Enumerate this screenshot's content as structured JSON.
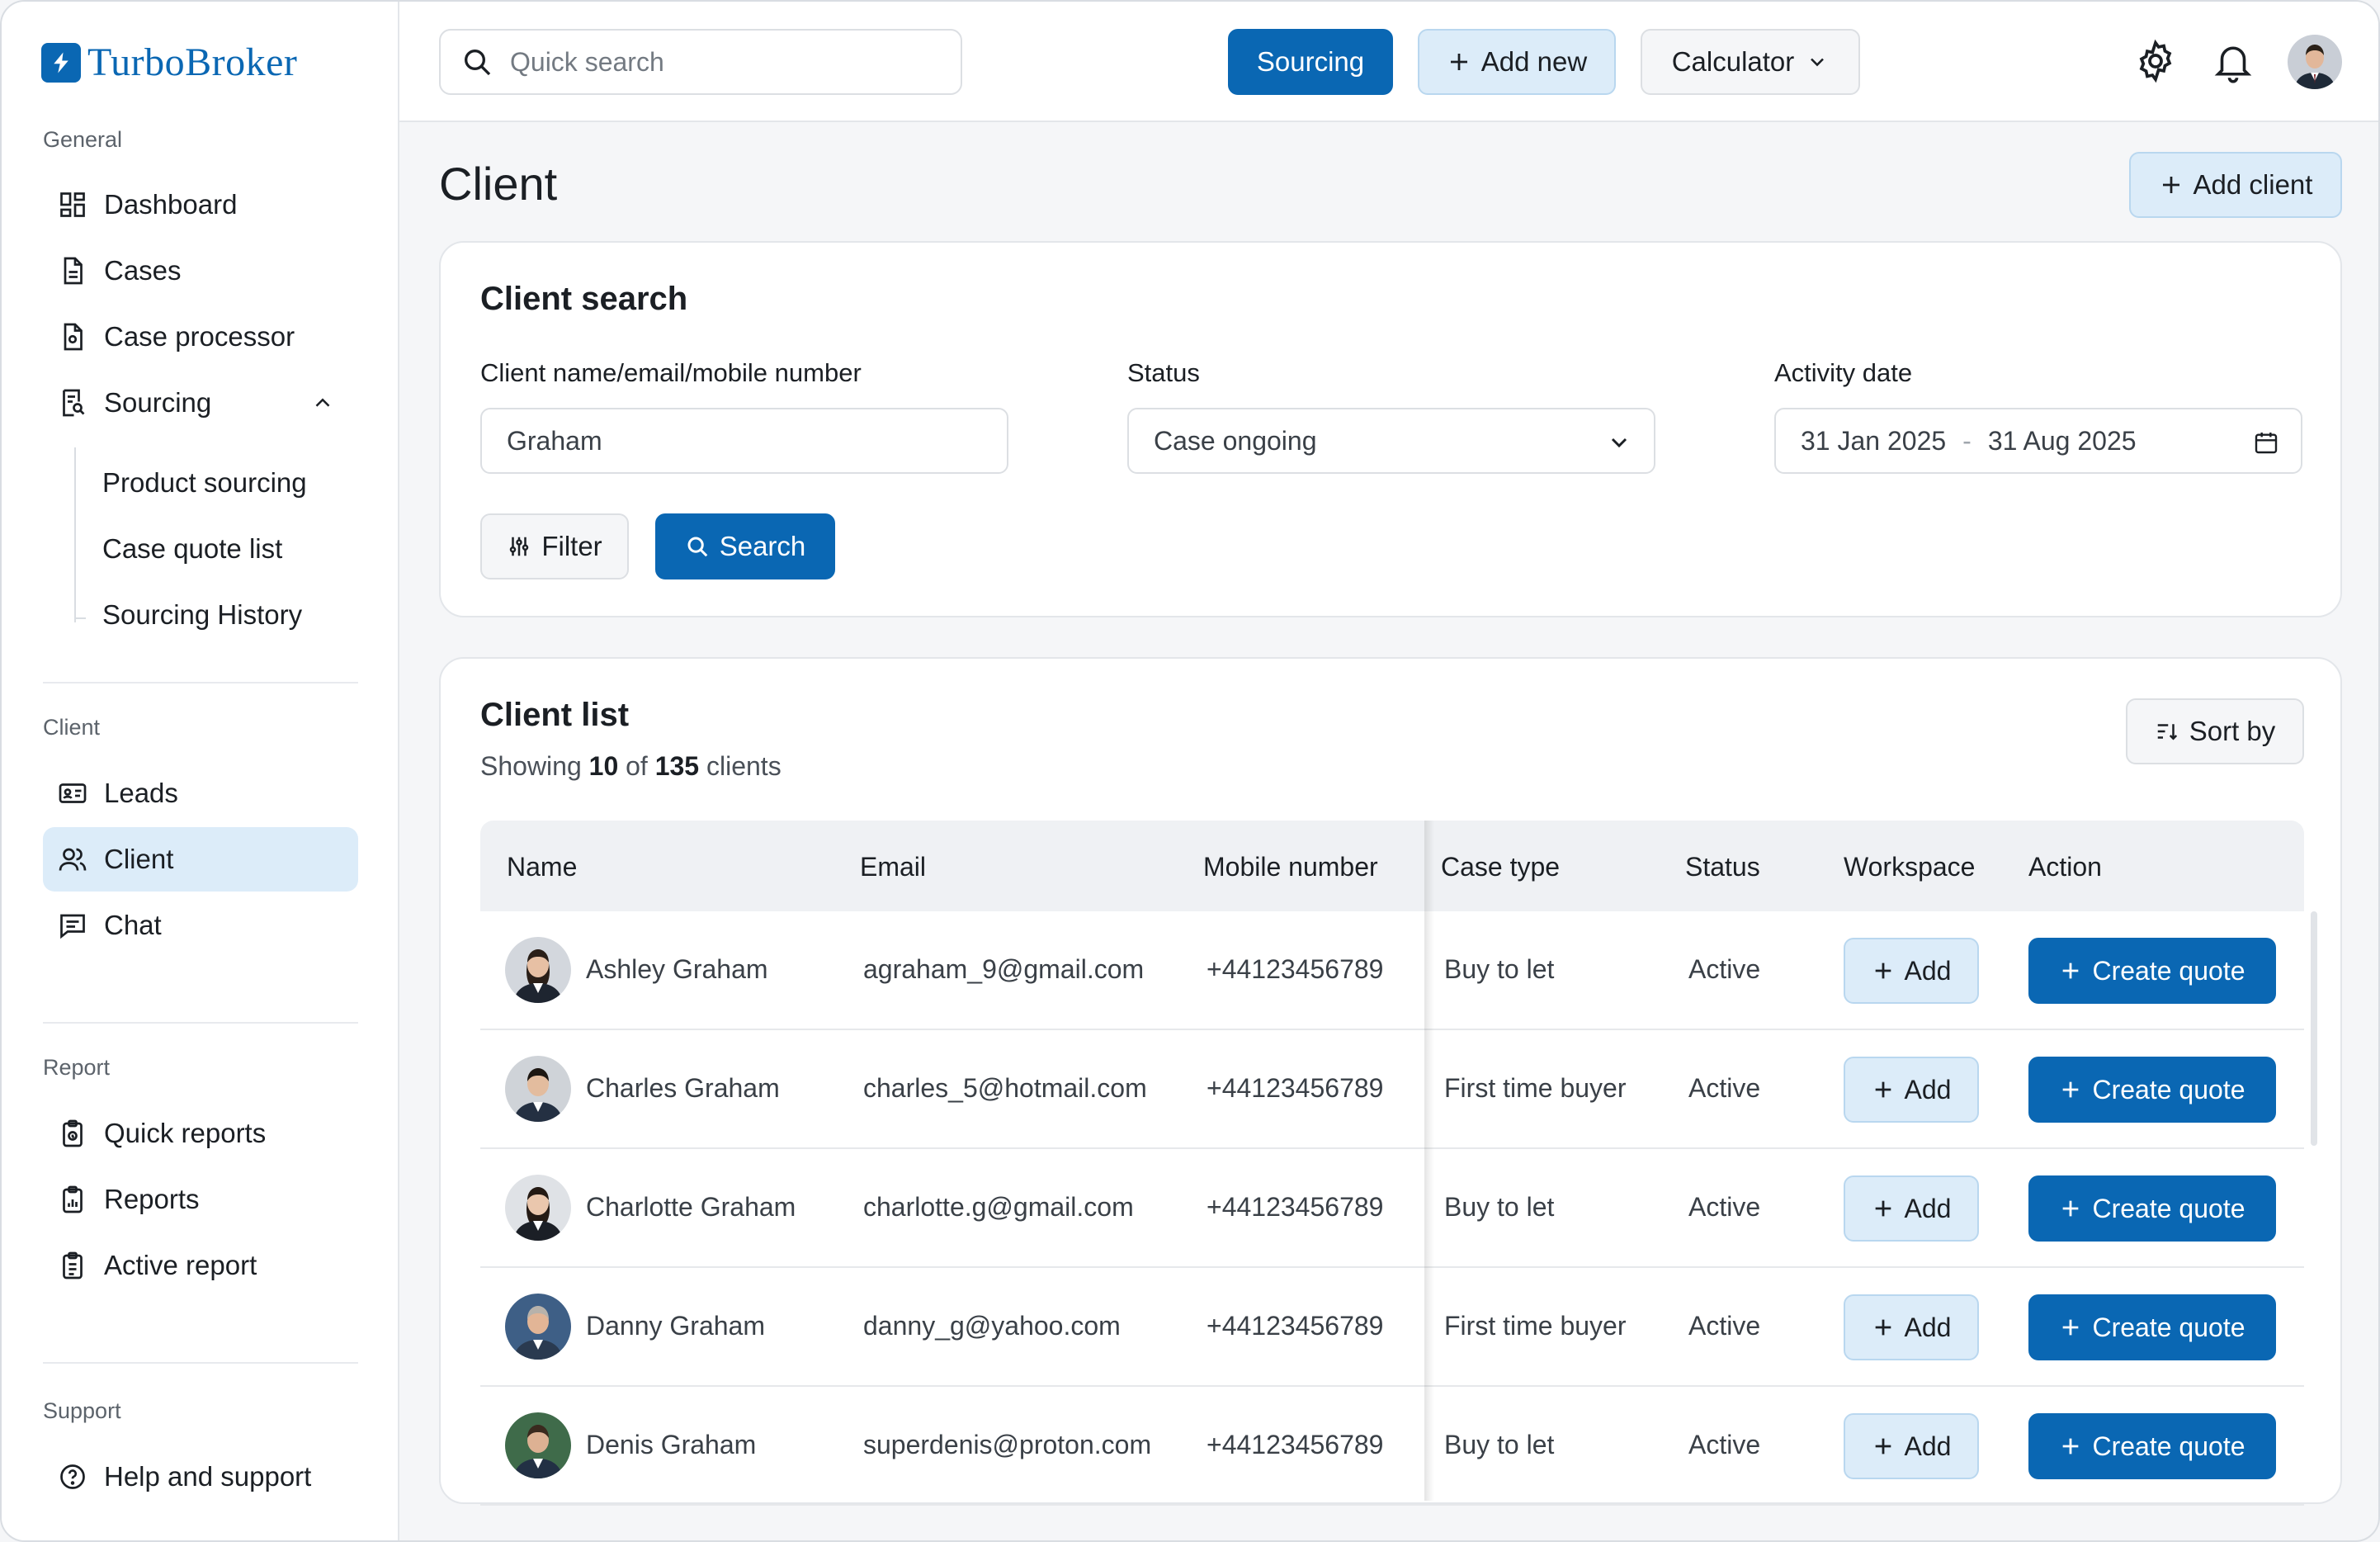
{
  "app": {
    "name": "TurboBroker",
    "brand_color": "#0a67b3"
  },
  "sidebar": {
    "sections": {
      "general": "General",
      "client": "Client",
      "report": "Report",
      "support": "Support"
    },
    "general_items": [
      "Dashboard",
      "Cases",
      "Case processor",
      "Sourcing"
    ],
    "sourcing_sub_items": [
      "Product sourcing",
      "Case quote list",
      "Sourcing History"
    ],
    "client_items": [
      "Leads",
      "Client",
      "Chat"
    ],
    "report_items": [
      "Quick reports",
      "Reports",
      "Active report"
    ],
    "support_items": [
      "Help and support"
    ],
    "active_item": "Client"
  },
  "topbar": {
    "search_placeholder": "Quick search",
    "sourcing_label": "Sourcing",
    "add_new_label": "Add new",
    "calculator_label": "Calculator",
    "icons": [
      "settings-icon",
      "bell-icon",
      "avatar"
    ]
  },
  "page": {
    "title": "Client",
    "add_client_label": "Add client"
  },
  "client_search": {
    "title": "Client search",
    "name_label": "Client name/email/mobile number",
    "name_value": "Graham",
    "status_label": "Status",
    "status_value": "Case ongoing",
    "date_label": "Activity date",
    "date_from": "31 Jan 2025",
    "date_sep": "-",
    "date_to": "31 Aug 2025",
    "filter_label": "Filter",
    "search_label": "Search"
  },
  "client_list": {
    "title": "Client list",
    "showing_prefix": "Showing",
    "showing_count": "10",
    "showing_of": "of",
    "showing_total": "135",
    "showing_suffix": "clients",
    "sort_label": "Sort by",
    "columns": [
      "Name",
      "Email",
      "Mobile number",
      "Case type",
      "Status",
      "Workspace",
      "Action"
    ],
    "add_label": "Add",
    "quote_label": "Create quote",
    "rows": [
      {
        "name": "Ashley Graham",
        "email": "agraham_9@gmail.com",
        "mobile": "+44123456789",
        "case_type": "Buy to let",
        "status": "Active"
      },
      {
        "name": "Charles Graham",
        "email": "charles_5@hotmail.com",
        "mobile": "+44123456789",
        "case_type": "First time buyer",
        "status": "Active"
      },
      {
        "name": "Charlotte Graham",
        "email": "charlotte.g@gmail.com",
        "mobile": "+44123456789",
        "case_type": "Buy to let",
        "status": "Active"
      },
      {
        "name": "Danny Graham",
        "email": "danny_g@yahoo.com",
        "mobile": "+44123456789",
        "case_type": "First time buyer",
        "status": "Active"
      },
      {
        "name": "Denis Graham",
        "email": "superdenis@proton.com",
        "mobile": "+44123456789",
        "case_type": "Buy to let",
        "status": "Active"
      }
    ]
  }
}
